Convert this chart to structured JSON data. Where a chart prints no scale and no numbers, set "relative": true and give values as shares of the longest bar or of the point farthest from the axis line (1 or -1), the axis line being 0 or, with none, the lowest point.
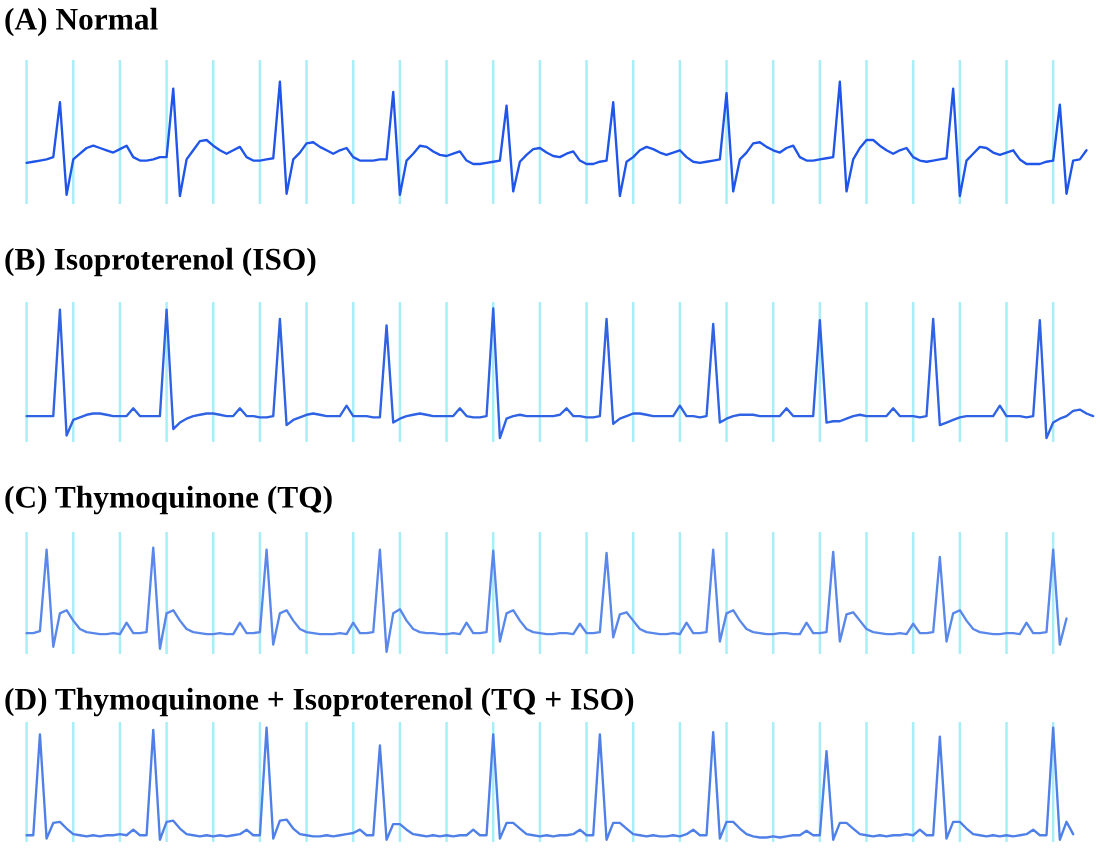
{
  "chart_data": [
    {
      "type": "line",
      "title": "(A) Normal",
      "relative": true,
      "grid": "x",
      "tick_labels": false,
      "categories": [
        null,
        null,
        null,
        null,
        null,
        null,
        null,
        null,
        null,
        null,
        null,
        null,
        null,
        null,
        null,
        null,
        null,
        null,
        null,
        null,
        null,
        null,
        null,
        null,
        null,
        null,
        null,
        null,
        null,
        null,
        null,
        null,
        null,
        null,
        null,
        null,
        null,
        null,
        null,
        null,
        null,
        null,
        null,
        null,
        null,
        null,
        null,
        null,
        null,
        null,
        null,
        null,
        null,
        null,
        null,
        null,
        null,
        null,
        null,
        null,
        null,
        null,
        null,
        null,
        null,
        null,
        null,
        null,
        null,
        null,
        null,
        null,
        null,
        null,
        null,
        null,
        null,
        null,
        null,
        null,
        null,
        null,
        null,
        null,
        null,
        null,
        null,
        null,
        null,
        null,
        null,
        null,
        null,
        null,
        null,
        null,
        null,
        null,
        null,
        null,
        null,
        null,
        null,
        null,
        null,
        null,
        null,
        null,
        null,
        null,
        null,
        null,
        null,
        null,
        null,
        null,
        null,
        null,
        null,
        null,
        null,
        null,
        null,
        null,
        null,
        null,
        null,
        null,
        null,
        null,
        null,
        null,
        null,
        null,
        null,
        null,
        null,
        null,
        null,
        null,
        null,
        null,
        null,
        null,
        null,
        null,
        null,
        null,
        null,
        null,
        null,
        null,
        null,
        null,
        null,
        null,
        null,
        null,
        null,
        null
      ],
      "series": [
        {
          "color": "#1f55e8",
          "values": [
            0.29,
            0.3,
            0.31,
            0.32,
            0.34,
            0.82,
            0.01,
            0.32,
            0.37,
            0.42,
            0.44,
            0.42,
            0.4,
            0.38,
            0.41,
            0.44,
            0.34,
            0.31,
            0.31,
            0.32,
            0.34,
            0.34,
            0.94,
            0,
            0.32,
            0.4,
            0.48,
            0.49,
            0.44,
            0.4,
            0.37,
            0.4,
            0.43,
            0.34,
            0.31,
            0.31,
            0.32,
            0.33,
            1.0,
            0.02,
            0.32,
            0.38,
            0.46,
            0.47,
            0.43,
            0.4,
            0.37,
            0.4,
            0.42,
            0.34,
            0.31,
            0.31,
            0.31,
            0.32,
            0.32,
            0.91,
            0.01,
            0.31,
            0.37,
            0.44,
            0.43,
            0.39,
            0.36,
            0.35,
            0.37,
            0.39,
            0.31,
            0.28,
            0.28,
            0.29,
            0.3,
            0.31,
            0.79,
            0.04,
            0.3,
            0.36,
            0.41,
            0.42,
            0.38,
            0.35,
            0.34,
            0.37,
            0.39,
            0.31,
            0.28,
            0.28,
            0.3,
            0.31,
            0.82,
            0,
            0.3,
            0.34,
            0.4,
            0.43,
            0.41,
            0.38,
            0.36,
            0.38,
            0.4,
            0.34,
            0.3,
            0.29,
            0.3,
            0.31,
            0.32,
            0.9,
            0.04,
            0.32,
            0.38,
            0.46,
            0.47,
            0.43,
            0.4,
            0.38,
            0.42,
            0.44,
            0.34,
            0.31,
            0.31,
            0.32,
            0.33,
            0.34,
            1.0,
            0.04,
            0.32,
            0.42,
            0.49,
            0.49,
            0.44,
            0.4,
            0.37,
            0.4,
            0.42,
            0.34,
            0.31,
            0.3,
            0.31,
            0.32,
            0.33,
            0.94,
            0,
            0.31,
            0.37,
            0.43,
            0.42,
            0.38,
            0.36,
            0.38,
            0.4,
            0.32,
            0.28,
            0.28,
            0.28,
            0.3,
            0.31,
            0.8,
            0.02,
            0.31,
            0.32,
            0.4
          ]
        }
      ]
    },
    {
      "type": "line",
      "title": "(B) Isoproterenol (ISO)",
      "relative": true,
      "grid": "x",
      "tick_labels": false,
      "categories": [
        null,
        null,
        null,
        null,
        null,
        null,
        null,
        null,
        null,
        null,
        null,
        null,
        null,
        null,
        null,
        null,
        null,
        null,
        null,
        null,
        null,
        null,
        null,
        null,
        null,
        null,
        null,
        null,
        null,
        null,
        null,
        null,
        null,
        null,
        null,
        null,
        null,
        null,
        null,
        null,
        null,
        null,
        null,
        null,
        null,
        null,
        null,
        null,
        null,
        null,
        null,
        null,
        null,
        null,
        null,
        null,
        null,
        null,
        null,
        null,
        null,
        null,
        null,
        null,
        null,
        null,
        null,
        null,
        null,
        null,
        null,
        null,
        null,
        null,
        null,
        null,
        null,
        null,
        null,
        null,
        null,
        null,
        null,
        null,
        null,
        null,
        null,
        null,
        null,
        null,
        null,
        null,
        null,
        null,
        null,
        null,
        null,
        null,
        null,
        null,
        null,
        null,
        null,
        null,
        null,
        null,
        null,
        null,
        null,
        null,
        null,
        null,
        null,
        null,
        null,
        null,
        null,
        null,
        null,
        null,
        null,
        null,
        null,
        null,
        null,
        null,
        null,
        null,
        null,
        null,
        null,
        null,
        null,
        null,
        null,
        null,
        null,
        null,
        null,
        null,
        null,
        null,
        null,
        null,
        null,
        null,
        null,
        null,
        null,
        null,
        null,
        null,
        null,
        null,
        null,
        null,
        null,
        null,
        null,
        null,
        null
      ],
      "series": [
        {
          "color": "#2f63e3",
          "values": [
            0.17,
            0.17,
            0.17,
            0.17,
            0.17,
            0.99,
            0.02,
            0.14,
            0.16,
            0.18,
            0.19,
            0.19,
            0.18,
            0.17,
            0.17,
            0.17,
            0.23,
            0.17,
            0.17,
            0.17,
            0.17,
            0.99,
            0.07,
            0.12,
            0.15,
            0.17,
            0.18,
            0.19,
            0.19,
            0.18,
            0.17,
            0.17,
            0.23,
            0.17,
            0.17,
            0.16,
            0.16,
            0.17,
            0.92,
            0.1,
            0.14,
            0.16,
            0.18,
            0.19,
            0.18,
            0.17,
            0.17,
            0.17,
            0.25,
            0.17,
            0.17,
            0.17,
            0.16,
            0.16,
            0.87,
            0.12,
            0.15,
            0.17,
            0.18,
            0.19,
            0.18,
            0.17,
            0.17,
            0.17,
            0.17,
            0.23,
            0.17,
            0.16,
            0.16,
            0.17,
            1.0,
            0,
            0.15,
            0.17,
            0.18,
            0.17,
            0.17,
            0.17,
            0.17,
            0.17,
            0.18,
            0.23,
            0.17,
            0.17,
            0.16,
            0.16,
            0.17,
            0.92,
            0.11,
            0.15,
            0.17,
            0.19,
            0.19,
            0.18,
            0.17,
            0.17,
            0.17,
            0.17,
            0.25,
            0.17,
            0.17,
            0.16,
            0.17,
            0.88,
            0.12,
            0.15,
            0.17,
            0.18,
            0.18,
            0.18,
            0.17,
            0.17,
            0.17,
            0.17,
            0.23,
            0.17,
            0.17,
            0.17,
            0.17,
            0.91,
            0.12,
            0.13,
            0.13,
            0.15,
            0.17,
            0.18,
            0.17,
            0.17,
            0.17,
            0.17,
            0.23,
            0.17,
            0.17,
            0.17,
            0.16,
            0.17,
            0.92,
            0.1,
            0.12,
            0.14,
            0.16,
            0.17,
            0.17,
            0.17,
            0.17,
            0.17,
            0.25,
            0.17,
            0.17,
            0.17,
            0.16,
            0.17,
            0.91,
            0,
            0.12,
            0.15,
            0.17,
            0.21,
            0.22,
            0.19,
            0.17
          ]
        }
      ]
    },
    {
      "type": "line",
      "title": "(C) Thymoquinone (TQ)",
      "relative": true,
      "grid": "x",
      "tick_labels": false,
      "categories": [
        null,
        null,
        null,
        null,
        null,
        null,
        null,
        null,
        null,
        null,
        null,
        null,
        null,
        null,
        null,
        null,
        null,
        null,
        null,
        null,
        null,
        null,
        null,
        null,
        null,
        null,
        null,
        null,
        null,
        null,
        null,
        null,
        null,
        null,
        null,
        null,
        null,
        null,
        null,
        null,
        null,
        null,
        null,
        null,
        null,
        null,
        null,
        null,
        null,
        null,
        null,
        null,
        null,
        null,
        null,
        null,
        null,
        null,
        null,
        null,
        null,
        null,
        null,
        null,
        null,
        null,
        null,
        null,
        null,
        null,
        null,
        null,
        null,
        null,
        null,
        null,
        null,
        null,
        null,
        null,
        null,
        null,
        null,
        null,
        null,
        null,
        null,
        null,
        null,
        null,
        null,
        null,
        null,
        null,
        null,
        null,
        null,
        null,
        null,
        null,
        null,
        null,
        null,
        null,
        null,
        null,
        null,
        null,
        null,
        null,
        null,
        null,
        null,
        null,
        null,
        null,
        null,
        null,
        null,
        null,
        null,
        null,
        null,
        null,
        null,
        null,
        null,
        null,
        null,
        null,
        null,
        null,
        null,
        null,
        null,
        null,
        null,
        null,
        null,
        null,
        null,
        null,
        null,
        null,
        null,
        null,
        null,
        null,
        null,
        null,
        null,
        null,
        null,
        null,
        null,
        null,
        null
      ],
      "series": [
        {
          "color": "#5a88ea",
          "values": [
            0.18,
            0.18,
            0.2,
            0.98,
            0.05,
            0.37,
            0.4,
            0.3,
            0.22,
            0.19,
            0.18,
            0.17,
            0.17,
            0.18,
            0.17,
            0.28,
            0.18,
            0.18,
            0.19,
            1.0,
            0.03,
            0.37,
            0.4,
            0.3,
            0.22,
            0.19,
            0.18,
            0.17,
            0.17,
            0.18,
            0.17,
            0.17,
            0.28,
            0.18,
            0.18,
            0.19,
            0.98,
            0.07,
            0.37,
            0.4,
            0.3,
            0.22,
            0.19,
            0.18,
            0.17,
            0.17,
            0.17,
            0.18,
            0.17,
            0.28,
            0.18,
            0.18,
            0.19,
            0.98,
            0,
            0.37,
            0.41,
            0.3,
            0.22,
            0.19,
            0.18,
            0.18,
            0.17,
            0.17,
            0.18,
            0.17,
            0.28,
            0.18,
            0.18,
            0.19,
            0.97,
            0.1,
            0.37,
            0.4,
            0.3,
            0.22,
            0.19,
            0.18,
            0.17,
            0.17,
            0.18,
            0.18,
            0.17,
            0.27,
            0.18,
            0.18,
            0.19,
            0.95,
            0.14,
            0.36,
            0.38,
            0.3,
            0.22,
            0.19,
            0.18,
            0.17,
            0.17,
            0.18,
            0.17,
            0.28,
            0.18,
            0.18,
            0.19,
            0.98,
            0.1,
            0.37,
            0.4,
            0.3,
            0.22,
            0.19,
            0.18,
            0.17,
            0.17,
            0.18,
            0.18,
            0.17,
            0.17,
            0.28,
            0.18,
            0.18,
            0.19,
            0.96,
            0.1,
            0.36,
            0.38,
            0.3,
            0.22,
            0.19,
            0.18,
            0.17,
            0.17,
            0.18,
            0.17,
            0.27,
            0.18,
            0.18,
            0.19,
            0.91,
            0.1,
            0.37,
            0.4,
            0.3,
            0.22,
            0.19,
            0.18,
            0.17,
            0.17,
            0.18,
            0.18,
            0.17,
            0.28,
            0.18,
            0.18,
            0.19,
            0.98,
            0.07,
            0.32
          ]
        }
      ]
    },
    {
      "type": "line",
      "title": "(D) Thymoquinone + Isoproterenol (TQ + ISO)",
      "relative": true,
      "grid": "x",
      "tick_labels": false,
      "categories": [
        null,
        null,
        null,
        null,
        null,
        null,
        null,
        null,
        null,
        null,
        null,
        null,
        null,
        null,
        null,
        null,
        null,
        null,
        null,
        null,
        null,
        null,
        null,
        null,
        null,
        null,
        null,
        null,
        null,
        null,
        null,
        null,
        null,
        null,
        null,
        null,
        null,
        null,
        null,
        null,
        null,
        null,
        null,
        null,
        null,
        null,
        null,
        null,
        null,
        null,
        null,
        null,
        null,
        null,
        null,
        null,
        null,
        null,
        null,
        null,
        null,
        null,
        null,
        null,
        null,
        null,
        null,
        null,
        null,
        null,
        null,
        null,
        null,
        null,
        null,
        null,
        null,
        null,
        null,
        null,
        null,
        null,
        null,
        null,
        null,
        null,
        null,
        null,
        null,
        null,
        null,
        null,
        null,
        null,
        null,
        null,
        null,
        null,
        null,
        null,
        null,
        null,
        null,
        null,
        null,
        null,
        null,
        null,
        null,
        null,
        null,
        null,
        null,
        null,
        null,
        null,
        null,
        null,
        null,
        null,
        null,
        null,
        null,
        null,
        null,
        null,
        null,
        null,
        null,
        null,
        null,
        null,
        null,
        null,
        null,
        null,
        null,
        null,
        null,
        null,
        null,
        null,
        null,
        null,
        null,
        null,
        null,
        null,
        null,
        null,
        null,
        null,
        null,
        null,
        null,
        null,
        null,
        null
      ],
      "series": [
        {
          "color": "#4f80e8",
          "values": [
            0.04,
            0.04,
            0.94,
            0.01,
            0.15,
            0.16,
            0.1,
            0.05,
            0.04,
            0.03,
            0.04,
            0.03,
            0.04,
            0.04,
            0.05,
            0.04,
            0.09,
            0.04,
            0.04,
            0.98,
            0,
            0.16,
            0.17,
            0.1,
            0.05,
            0.04,
            0.03,
            0.04,
            0.03,
            0.04,
            0.03,
            0.04,
            0.05,
            0.09,
            0.04,
            0.04,
            1.0,
            0.01,
            0.17,
            0.18,
            0.1,
            0.05,
            0.04,
            0.03,
            0.03,
            0.04,
            0.03,
            0.04,
            0.05,
            0.06,
            0.09,
            0.04,
            0.04,
            0.84,
            0,
            0.14,
            0.14,
            0.09,
            0.05,
            0.04,
            0.03,
            0.04,
            0.03,
            0.04,
            0.03,
            0.04,
            0.04,
            0.09,
            0.04,
            0.04,
            0.94,
            0.01,
            0.15,
            0.15,
            0.1,
            0.05,
            0.04,
            0.03,
            0.04,
            0.03,
            0.04,
            0.04,
            0.05,
            0.09,
            0.04,
            0.04,
            0.94,
            0,
            0.15,
            0.15,
            0.1,
            0.05,
            0.04,
            0.03,
            0.04,
            0.03,
            0.03,
            0.04,
            0.03,
            0.05,
            0.09,
            0.04,
            0.04,
            0.96,
            0.01,
            0.16,
            0.16,
            0.1,
            0.05,
            0.03,
            0.02,
            0.02,
            0.03,
            0.02,
            0.03,
            0.04,
            0.04,
            0.08,
            0.04,
            0.04,
            0.79,
            0,
            0.15,
            0.15,
            0.1,
            0.05,
            0.04,
            0.03,
            0.04,
            0.03,
            0.04,
            0.04,
            0.05,
            0.04,
            0.09,
            0.04,
            0.04,
            0.92,
            0.01,
            0.16,
            0.16,
            0.1,
            0.05,
            0.04,
            0.03,
            0.04,
            0.03,
            0.04,
            0.03,
            0.04,
            0.05,
            0.09,
            0.04,
            0.04,
            1.0,
            0,
            0.16,
            0.05
          ]
        }
      ]
    }
  ]
}
